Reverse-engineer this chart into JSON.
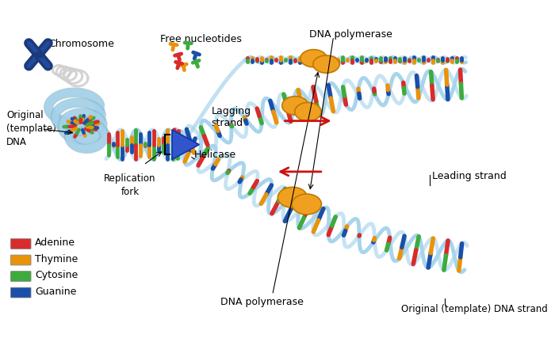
{
  "background_color": "#ffffff",
  "labels": {
    "chromosome": "Chromosome",
    "free_nucleotides": "Free nucleotides",
    "dna_polymerase_top": "DNA polymerase",
    "leading_strand": "Leading strand",
    "helicase": "Helicase",
    "lagging_strand": "Lagging\nstrand",
    "original_template": "Original\n(template)\nDNA",
    "replication_fork": "Replication\nfork",
    "dna_polymerase_bottom": "DNA polymerase",
    "original_template_strand": "Original (template) DNA strand"
  },
  "legend_items": [
    {
      "label": "Adenine",
      "color": "#d92b2b"
    },
    {
      "label": "Thymine",
      "color": "#e8930a"
    },
    {
      "label": "Cytosine",
      "color": "#3dab3d"
    },
    {
      "label": "Guanine",
      "color": "#1a4faa"
    }
  ],
  "colors": {
    "adenine": "#d92b2b",
    "thymine": "#e8930a",
    "cytosine": "#3dab3d",
    "guanine": "#1a4faa",
    "backbone": "#a8d4ec",
    "backbone2": "#8bbdd4",
    "chromosome": "#1a3a7a",
    "helicase": "#3355cc",
    "polymerase": "#f0a020",
    "poly_edge": "#c07800",
    "arrow_red": "#cc1111",
    "coil_line": "#c0dcf0",
    "text": "#000000",
    "gray_coil": "#c8c8c8"
  },
  "figsize": [
    7.0,
    4.32
  ],
  "dpi": 100
}
